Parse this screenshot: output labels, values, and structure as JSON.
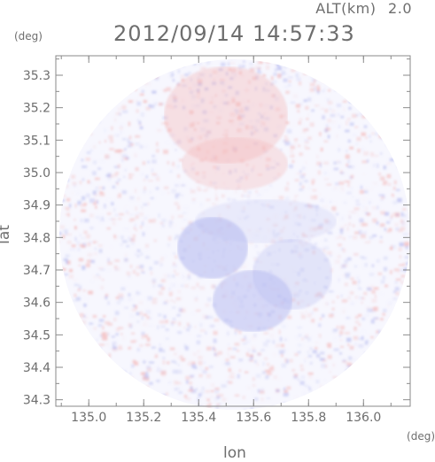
{
  "header": {
    "alt_label": "ALT(km)",
    "alt_value": "2.0",
    "timestamp": "2012/09/14 14:57:33"
  },
  "axes": {
    "x_unit": "(deg)",
    "y_unit": "(deg)",
    "x_label": "lon",
    "y_label": "lat",
    "x_ticks": [
      "135.0",
      "135.2",
      "135.4",
      "135.6",
      "135.8",
      "136.0"
    ],
    "y_ticks": [
      "35.3",
      "35.2",
      "35.1",
      "35.0",
      "34.9",
      "34.8",
      "34.7",
      "34.6",
      "34.5",
      "34.4",
      "34.3"
    ]
  },
  "chart_data": {
    "type": "heatmap",
    "x_range": [
      134.88,
      136.17
    ],
    "y_range": [
      34.28,
      35.36
    ],
    "x_tick_values": [
      135.0,
      135.2,
      135.4,
      135.6,
      135.8,
      136.0
    ],
    "y_tick_values": [
      35.3,
      35.2,
      35.1,
      35.0,
      34.9,
      34.8,
      34.7,
      34.6,
      34.5,
      34.4,
      34.3
    ],
    "radar_center": [
      135.52,
      34.82
    ],
    "colors": {
      "positive": "#f3b3b3",
      "negative": "#b3b8ef",
      "background": "#ffffff",
      "axis": "#8a8a8a"
    }
  }
}
